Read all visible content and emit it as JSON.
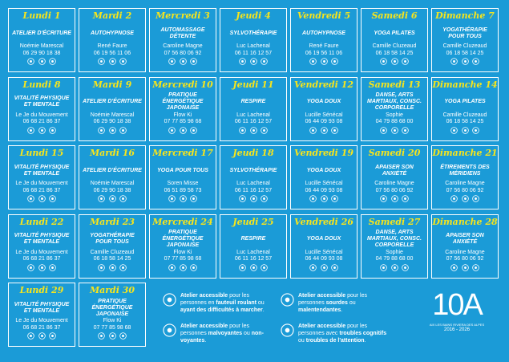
{
  "days": [
    {
      "day": "Lundi 1",
      "activity": "ATELIER D'ÉCRITURE",
      "name": "Noémie Marescal",
      "phone": "06 29 90 18 38"
    },
    {
      "day": "Mardi 2",
      "activity": "AUTOHYPNOSE",
      "name": "René Faure",
      "phone": "06 19 56 11 06"
    },
    {
      "day": "Mercredi 3",
      "activity": "AUTOMASSAGE DÉTENTE",
      "name": "Caroline Magne",
      "phone": "07 56 80 06 92"
    },
    {
      "day": "Jeudi 4",
      "activity": "SYLVOTHÉRAPIE",
      "name": "Luc Lachenal",
      "phone": "06 11 16 12 57"
    },
    {
      "day": "Vendredi 5",
      "activity": "AUTOHYPNOSE",
      "name": "René Faure",
      "phone": "06 19 56 11 06"
    },
    {
      "day": "Samedi 6",
      "activity": "YOGA PILATES",
      "name": "Camille Cluzeaud",
      "phone": "06 18 58 14 25"
    },
    {
      "day": "Dimanche 7",
      "activity": "YOGATHÉRAPIE POUR TOUS",
      "name": "Camille Cluzeaud",
      "phone": "06 18 58 14 25"
    },
    {
      "day": "Lundi 8",
      "activity": "VITALITÉ PHYSIQUE ET MENTALE",
      "name": "Le Je du Mouvement",
      "phone": "06 68 21 86 37"
    },
    {
      "day": "Mardi 9",
      "activity": "ATELIER D'ÉCRITURE",
      "name": "Noémie Marescal",
      "phone": "06 29 90 18 38"
    },
    {
      "day": "Mercredi 10",
      "activity": "PRATIQUE ÉNERGÉTIQUE JAPONAISE",
      "name": "Flow Ki",
      "phone": "07 77 85 98 68"
    },
    {
      "day": "Jeudi 11",
      "activity": "RESPIRE",
      "name": "Luc Lachenal",
      "phone": "06 11 16 12 57"
    },
    {
      "day": "Vendredi 12",
      "activity": "YOGA DOUX",
      "name": "Lucille Sénécal",
      "phone": "06 44 09 93 08"
    },
    {
      "day": "Samedi 13",
      "activity": "DANSE, ARTS MARTIAUX, CONSC. CORPORELLE",
      "name": "Sophie",
      "phone": "04 79 88 68 00"
    },
    {
      "day": "Dimanche 14",
      "activity": "YOGA PILATES",
      "name": "Camille Cluzeaud",
      "phone": "06 18 58 14 25"
    },
    {
      "day": "Lundi 15",
      "activity": "VITALITÉ PHYSIQUE ET MENTALE",
      "name": "Le Je du Mouvement",
      "phone": "06 68 21 86 37"
    },
    {
      "day": "Mardi 16",
      "activity": "ATELIER D'ÉCRITURE",
      "name": "Noémie Marescal",
      "phone": "06 29 90 18 38"
    },
    {
      "day": "Mercredi 17",
      "activity": "YOGA POUR TOUS",
      "name": "Soren Misse",
      "phone": "06 51 89 58 73"
    },
    {
      "day": "Jeudi 18",
      "activity": "SYLVOTHÉRAPIE",
      "name": "Luc Lachenal",
      "phone": "06 11 16 12 57"
    },
    {
      "day": "Vendredi 19",
      "activity": "YOGA DOUX",
      "name": "Lucille Sénécal",
      "phone": "06 44 09 93 08"
    },
    {
      "day": "Samedi 20",
      "activity": "APAISER SON ANXIÉTÉ",
      "name": "Caroline Magne",
      "phone": "07 56 80 06 92"
    },
    {
      "day": "Dimanche 21",
      "activity": "ÉTIREMENTS DES MÉRIDIENS",
      "name": "Caroline Magne",
      "phone": "07 56 80 06 92"
    },
    {
      "day": "Lundi 22",
      "activity": "VITALITÉ PHYSIQUE ET MENTALE",
      "name": "Le Je du Mouvement",
      "phone": "06 68 21 86 37"
    },
    {
      "day": "Mardi 23",
      "activity": "YOGATHÉRAPIE POUR TOUS",
      "name": "Camille Cluzeaud",
      "phone": "06 18 58 14 25"
    },
    {
      "day": "Mercredi 24",
      "activity": "PRATIQUE ÉNERGÉTIQUE JAPONAISE",
      "name": "Flow Ki",
      "phone": "07 77 85 98 68"
    },
    {
      "day": "Jeudi 25",
      "activity": "RESPIRE",
      "name": "Luc Lachenal",
      "phone": "06 11 16 12 57"
    },
    {
      "day": "Vendredi 26",
      "activity": "YOGA DOUX",
      "name": "Lucille Sénécal",
      "phone": "06 44 09 93 08"
    },
    {
      "day": "Samedi 27",
      "activity": "DANSE, ARTS MARTIAUX, CONSC. CORPORELLE",
      "name": "Sophie",
      "phone": "04 79 88 68 00"
    },
    {
      "day": "Dimanche 28",
      "activity": "APAISER SON ANXIÉTÉ",
      "name": "Caroline Magne",
      "phone": "07 56 80 06 92"
    },
    {
      "day": "Lundi 29",
      "activity": "VITALITÉ PHYSIQUE ET MENTALE",
      "name": "Le Je du Mouvement",
      "phone": "06 68 21 86 37"
    },
    {
      "day": "Mardi 30",
      "activity": "PRATIQUE ÉNERGÉTIQUE JAPONAISE",
      "name": "Flow Ki",
      "phone": "07 77 85 98 68"
    }
  ],
  "legend": [
    [
      {
        "text": "Atelier accessible",
        "bold": true
      },
      {
        "text": " pour les personnes en ",
        "bold": false
      },
      {
        "text": "fauteuil roulant",
        "bold": true
      },
      {
        "text": " ou ",
        "bold": false
      },
      {
        "text": "ayant des difficultés à marcher",
        "bold": true
      },
      {
        "text": ".",
        "bold": false
      }
    ],
    [
      {
        "text": "Atelier accessible",
        "bold": true
      },
      {
        "text": " pour les personnes ",
        "bold": false
      },
      {
        "text": "malvoyantes",
        "bold": true
      },
      {
        "text": " ou ",
        "bold": false
      },
      {
        "text": "non-voyantes",
        "bold": true
      },
      {
        "text": ".",
        "bold": false
      }
    ],
    [
      {
        "text": "Atelier accessible",
        "bold": true
      },
      {
        "text": " pour les personnes ",
        "bold": false
      },
      {
        "text": "sourdes",
        "bold": true
      },
      {
        "text": " ou ",
        "bold": false
      },
      {
        "text": "malentendantes",
        "bold": true
      },
      {
        "text": ".",
        "bold": false
      }
    ],
    [
      {
        "text": "Atelier accessible",
        "bold": true
      },
      {
        "text": " pour les personnes avec ",
        "bold": false
      },
      {
        "text": "troubles cognitifs",
        "bold": true
      },
      {
        "text": " ou ",
        "bold": false
      },
      {
        "text": "troubles de l'attention",
        "bold": true
      },
      {
        "text": ".",
        "bold": false
      }
    ]
  ],
  "logo": {
    "mark": "10A",
    "tagline": "AIX LES BAINS RIVIERA DES ALPES",
    "years": "2016 - 2026"
  }
}
